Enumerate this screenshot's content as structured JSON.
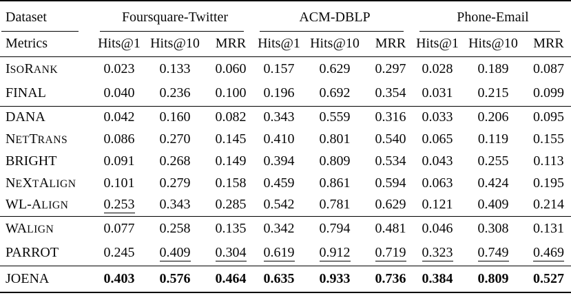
{
  "colors": {
    "background": "#ffffff",
    "text": "#080808",
    "rules": "#000000"
  },
  "table": {
    "corner_label": "Dataset",
    "metrics_label": "Metrics",
    "groups": [
      {
        "label": "Foursquare-Twitter",
        "metrics": [
          "Hits@1",
          "Hits@10",
          "MRR"
        ]
      },
      {
        "label": "ACM-DBLP",
        "metrics": [
          "Hits@1",
          "Hits@10",
          "MRR"
        ]
      },
      {
        "label": "Phone-Email",
        "metrics": [
          "Hits@1",
          "Hits@10",
          "MRR"
        ]
      }
    ],
    "legend_semantics": {
      "bold": "best result",
      "underline": "second-best result"
    },
    "sections": [
      {
        "rows": [
          {
            "method": "IsoRank",
            "values": [
              "0.023",
              "0.133",
              "0.060",
              "0.157",
              "0.629",
              "0.297",
              "0.028",
              "0.189",
              "0.087"
            ],
            "underline": [],
            "bold": false
          },
          {
            "method": "FINAL",
            "values": [
              "0.040",
              "0.236",
              "0.100",
              "0.196",
              "0.692",
              "0.354",
              "0.031",
              "0.215",
              "0.099"
            ],
            "underline": [],
            "bold": false
          }
        ]
      },
      {
        "rows": [
          {
            "method": "DANA",
            "values": [
              "0.042",
              "0.160",
              "0.082",
              "0.343",
              "0.559",
              "0.316",
              "0.033",
              "0.206",
              "0.095"
            ],
            "underline": [],
            "bold": false
          },
          {
            "method": "NetTrans",
            "values": [
              "0.086",
              "0.270",
              "0.145",
              "0.410",
              "0.801",
              "0.540",
              "0.065",
              "0.119",
              "0.155"
            ],
            "underline": [],
            "bold": false
          },
          {
            "method": "BRIGHT",
            "values": [
              "0.091",
              "0.268",
              "0.149",
              "0.394",
              "0.809",
              "0.534",
              "0.043",
              "0.255",
              "0.113"
            ],
            "underline": [],
            "bold": false
          },
          {
            "method": "NeXtAlign",
            "values": [
              "0.101",
              "0.279",
              "0.158",
              "0.459",
              "0.861",
              "0.594",
              "0.063",
              "0.424",
              "0.195"
            ],
            "underline": [],
            "bold": false
          },
          {
            "method": "WL-Align",
            "values": [
              "0.253",
              "0.343",
              "0.285",
              "0.542",
              "0.781",
              "0.629",
              "0.121",
              "0.409",
              "0.214"
            ],
            "underline": [
              0
            ],
            "bold": false
          }
        ]
      },
      {
        "rows": [
          {
            "method": "WAlign",
            "values": [
              "0.077",
              "0.258",
              "0.135",
              "0.342",
              "0.794",
              "0.481",
              "0.046",
              "0.308",
              "0.131"
            ],
            "underline": [],
            "bold": false
          },
          {
            "method": "PARROT",
            "values": [
              "0.245",
              "0.409",
              "0.304",
              "0.619",
              "0.912",
              "0.719",
              "0.323",
              "0.749",
              "0.469"
            ],
            "underline": [
              1,
              2,
              3,
              4,
              5,
              6,
              7,
              8
            ],
            "bold": false
          }
        ]
      },
      {
        "rows": [
          {
            "method": "JOENA",
            "values": [
              "0.403",
              "0.576",
              "0.464",
              "0.635",
              "0.933",
              "0.736",
              "0.384",
              "0.809",
              "0.527"
            ],
            "underline": [],
            "bold": true
          }
        ]
      }
    ]
  }
}
